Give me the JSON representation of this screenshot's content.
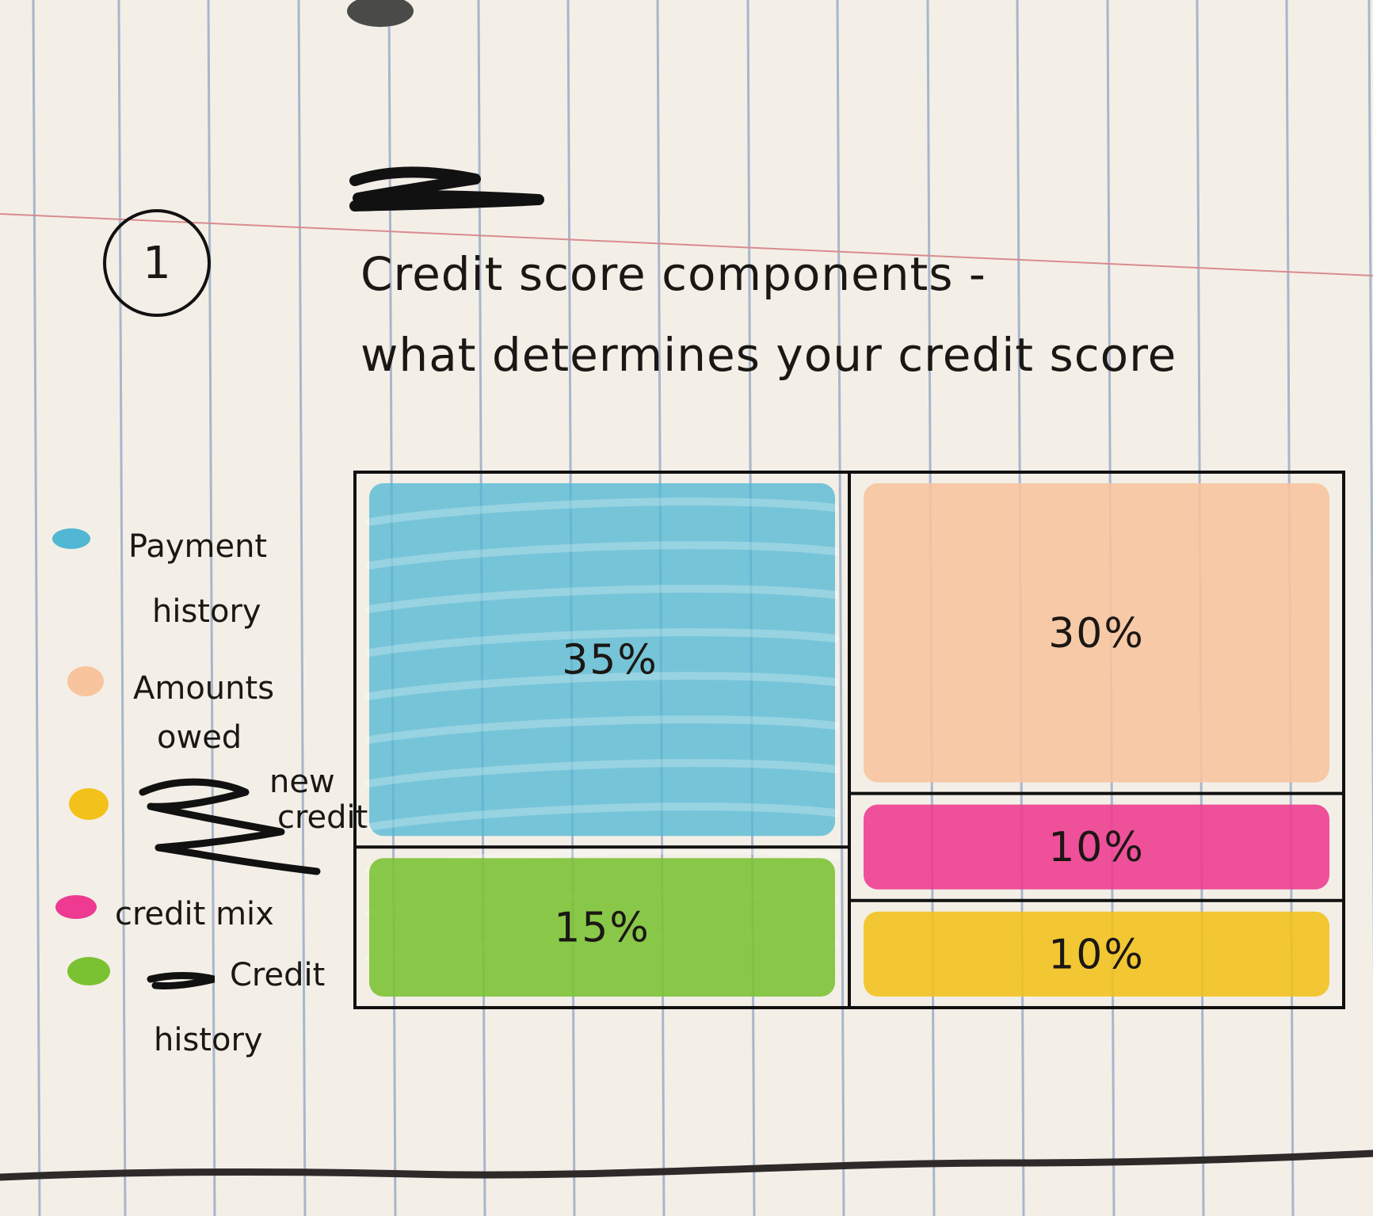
{
  "page": {
    "item_number": "1",
    "title_line1": "Credit score components -",
    "title_line2": "what determines your credit score"
  },
  "legend": {
    "items": [
      {
        "key": "payment",
        "line1": "Payment",
        "line2": "history",
        "color": "#52b7d3"
      },
      {
        "key": "owed",
        "line1": "Amounts",
        "line2": "owed",
        "color": "#f7c49d"
      },
      {
        "key": "new",
        "line1": "new",
        "line2": "credit",
        "color": "#f2c21b"
      },
      {
        "key": "mix",
        "line1": "credit mix",
        "line2": "",
        "color": "#ee3a90"
      },
      {
        "key": "length",
        "line1": "Credit",
        "line2": "history",
        "color": "#7ac232"
      }
    ]
  },
  "chart_data": {
    "type": "treemap",
    "title": "",
    "items": [
      {
        "key": "payment",
        "name": "Payment history",
        "value": 35,
        "label": "35%",
        "color": "#52b7d3"
      },
      {
        "key": "owed",
        "name": "Amounts owed",
        "value": 30,
        "label": "30%",
        "color": "#f7c49d"
      },
      {
        "key": "mix",
        "name": "credit mix",
        "value": 10,
        "label": "10%",
        "color": "#ee3a90"
      },
      {
        "key": "new",
        "name": "new credit",
        "value": 10,
        "label": "10%",
        "color": "#f2c21b"
      },
      {
        "key": "length",
        "name": "Credit history",
        "value": 15,
        "label": "15%",
        "color": "#7ac232"
      }
    ]
  }
}
